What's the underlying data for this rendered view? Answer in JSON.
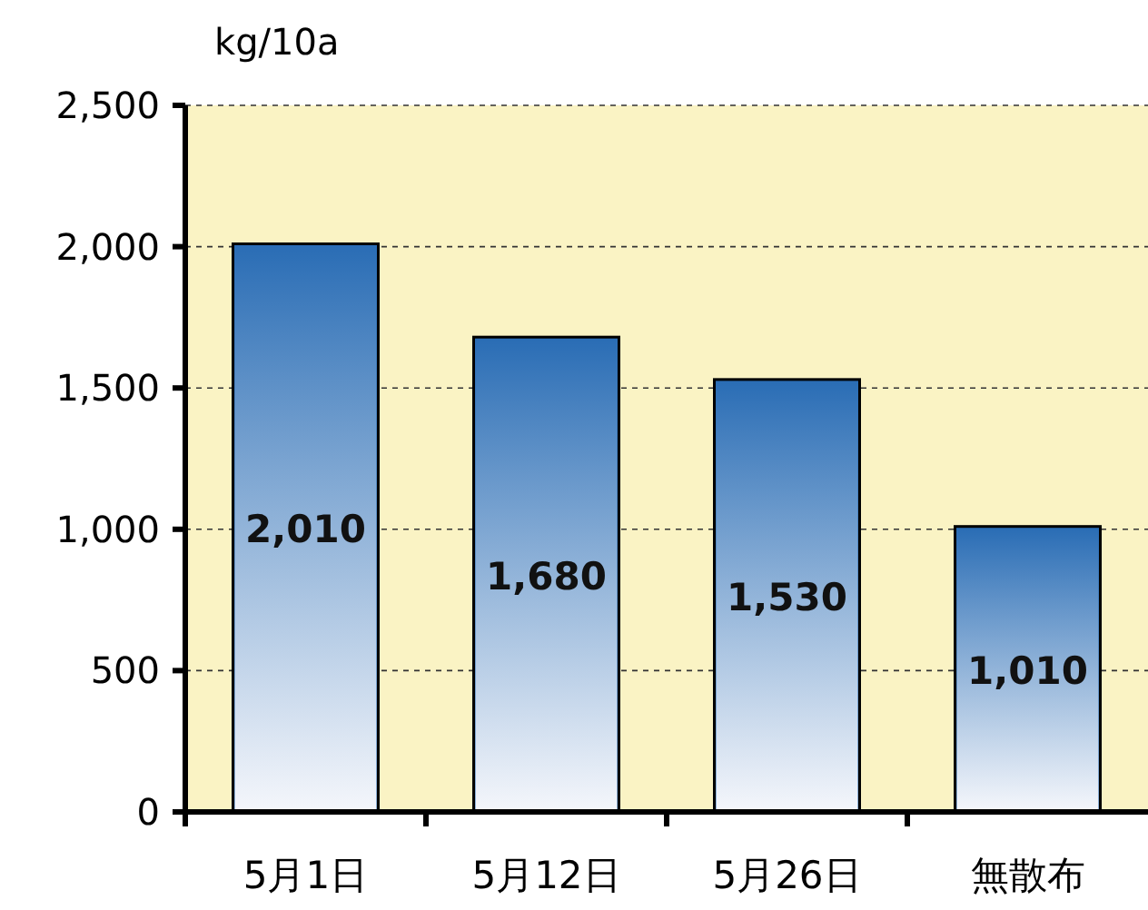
{
  "chart_data": {
    "type": "bar",
    "ylabel": "kg/10a",
    "categories": [
      "5月1日",
      "5月12日",
      "5月26日",
      "無散布"
    ],
    "values": [
      2010,
      1680,
      1530,
      1010
    ],
    "value_labels": [
      "2,010",
      "1,680",
      "1,530",
      "1,010"
    ],
    "color": "#2a6db5",
    "ylim": [
      0,
      2500
    ],
    "yticks": [
      {
        "value": 0,
        "label": "0"
      },
      {
        "value": 500,
        "label": "500"
      },
      {
        "value": 1000,
        "label": "1,000"
      },
      {
        "value": 1500,
        "label": "1,500"
      },
      {
        "value": 2000,
        "label": "2,000"
      },
      {
        "value": 2500,
        "label": "2,500"
      }
    ],
    "grid": "y"
  }
}
